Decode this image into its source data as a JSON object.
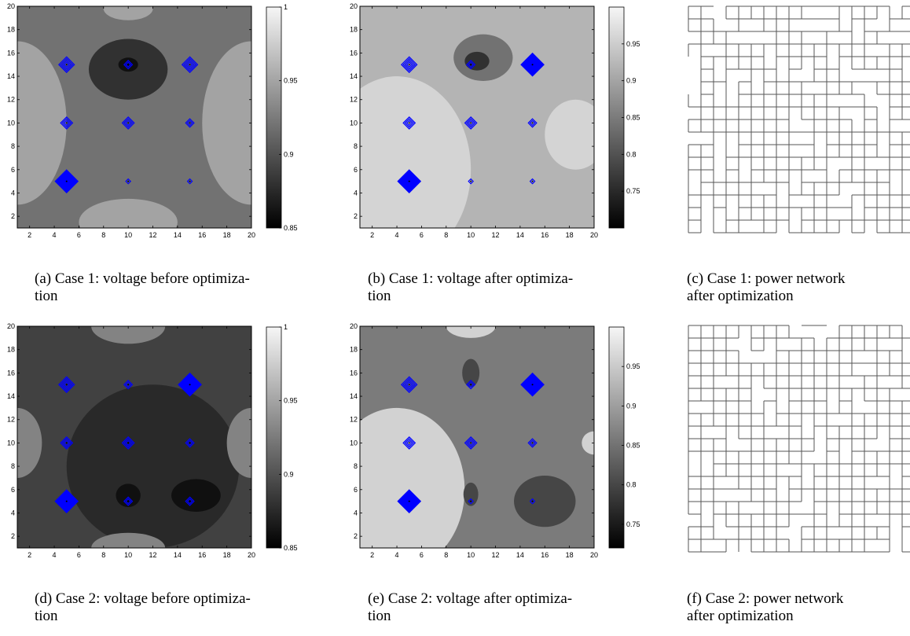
{
  "figure": {
    "panels": [
      {
        "id": "a",
        "caption": {
          "line1": "(a) Case 1: voltage before optimiza-",
          "line2": "tion"
        },
        "chart_data": {
          "type": "heatmap",
          "xlim": [
            1,
            20
          ],
          "ylim": [
            1,
            20
          ],
          "xticks": [
            2,
            4,
            6,
            8,
            10,
            12,
            14,
            16,
            18,
            20
          ],
          "yticks": [
            2,
            4,
            6,
            8,
            10,
            12,
            14,
            16,
            18,
            20
          ],
          "colorbar": {
            "ticks": [
              0.85,
              0.9,
              0.95,
              1
            ],
            "tick_labels": [
              "0.85",
              "0.9",
              "0.95",
              "1"
            ],
            "range": [
              0.85,
              1
            ]
          },
          "background_level": 0.92,
          "regions": [
            {
              "level": 0.88,
              "center": [
                10,
                14.6
              ],
              "radius": [
                3.2,
                2.6
              ]
            },
            {
              "level": 0.86,
              "center": [
                10,
                15.0
              ],
              "radius": [
                0.8,
                0.6
              ]
            },
            {
              "level": 0.95,
              "center": [
                10,
                1.5
              ],
              "radius": [
                4,
                2
              ]
            },
            {
              "level": 0.95,
              "center": [
                10,
                19.8
              ],
              "radius": [
                2,
                1
              ]
            },
            {
              "level": 0.95,
              "center": [
                1,
                10
              ],
              "radius": [
                4,
                7
              ]
            },
            {
              "level": 0.95,
              "center": [
                20,
                10
              ],
              "radius": [
                4,
                7
              ]
            }
          ],
          "markers": [
            {
              "x": 5,
              "y": 15,
              "rings": 4
            },
            {
              "x": 10,
              "y": 15,
              "rings": 2
            },
            {
              "x": 15,
              "y": 15,
              "rings": 4
            },
            {
              "x": 5,
              "y": 10,
              "rings": 3
            },
            {
              "x": 10,
              "y": 10,
              "rings": 3
            },
            {
              "x": 15,
              "y": 10,
              "rings": 2
            },
            {
              "x": 5,
              "y": 5,
              "rings": 6
            },
            {
              "x": 10,
              "y": 5,
              "rings": 1
            },
            {
              "x": 15,
              "y": 5,
              "rings": 1
            }
          ]
        }
      },
      {
        "id": "b",
        "caption": {
          "line1": "(b) Case 1:  voltage after optimiza-",
          "line2": "tion"
        },
        "chart_data": {
          "type": "heatmap",
          "xlim": [
            1,
            20
          ],
          "ylim": [
            1,
            20
          ],
          "xticks": [
            2,
            4,
            6,
            8,
            10,
            12,
            14,
            16,
            18,
            20
          ],
          "yticks": [
            2,
            4,
            6,
            8,
            10,
            12,
            14,
            16,
            18,
            20
          ],
          "colorbar": {
            "ticks": [
              0.75,
              0.8,
              0.85,
              0.9,
              0.95
            ],
            "tick_labels": [
              "0.75",
              "0.8",
              "0.85",
              "0.9",
              "0.95"
            ],
            "range": [
              0.7,
              1
            ]
          },
          "background_level": 0.92,
          "regions": [
            {
              "level": 0.96,
              "center": [
                4,
                6
              ],
              "radius": [
                6,
                8
              ]
            },
            {
              "level": 0.96,
              "center": [
                18.5,
                9
              ],
              "radius": [
                2.5,
                3
              ]
            },
            {
              "level": 0.84,
              "center": [
                11,
                15.6
              ],
              "radius": [
                2.4,
                2
              ]
            },
            {
              "level": 0.76,
              "center": [
                10.5,
                15.3
              ],
              "radius": [
                1,
                0.8
              ]
            }
          ],
          "markers": [
            {
              "x": 5,
              "y": 15,
              "rings": 4
            },
            {
              "x": 10,
              "y": 15,
              "rings": 2
            },
            {
              "x": 15,
              "y": 15,
              "rings": 6
            },
            {
              "x": 5,
              "y": 10,
              "rings": 3
            },
            {
              "x": 10,
              "y": 10,
              "rings": 3
            },
            {
              "x": 15,
              "y": 10,
              "rings": 2
            },
            {
              "x": 5,
              "y": 5,
              "rings": 6
            },
            {
              "x": 10,
              "y": 5,
              "rings": 1
            },
            {
              "x": 15,
              "y": 5,
              "rings": 1
            }
          ]
        }
      },
      {
        "id": "c",
        "caption": {
          "line1": "(c) Case 1: power network",
          "line2": "after optimization"
        },
        "network": true
      },
      {
        "id": "d",
        "caption": {
          "line1": "(d) Case 2: voltage before optimiza-",
          "line2": "tion"
        },
        "chart_data": {
          "type": "heatmap",
          "xlim": [
            1,
            20
          ],
          "ylim": [
            1,
            20
          ],
          "xticks": [
            2,
            4,
            6,
            8,
            10,
            12,
            14,
            16,
            18,
            20
          ],
          "yticks": [
            2,
            4,
            6,
            8,
            10,
            12,
            14,
            16,
            18,
            20
          ],
          "colorbar": {
            "ticks": [
              0.85,
              0.9,
              0.95,
              1
            ],
            "tick_labels": [
              "0.85",
              "0.9",
              "0.95",
              "1"
            ],
            "range": [
              0.85,
              1
            ]
          },
          "background_level": 0.89,
          "regions": [
            {
              "level": 0.875,
              "center": [
                12,
                8
              ],
              "radius": [
                7,
                7
              ]
            },
            {
              "level": 0.86,
              "center": [
                15.5,
                5.5
              ],
              "radius": [
                2,
                1.4
              ]
            },
            {
              "level": 0.86,
              "center": [
                10,
                5.5
              ],
              "radius": [
                1,
                1
              ]
            },
            {
              "level": 0.93,
              "center": [
                10,
                20
              ],
              "radius": [
                3,
                1.5
              ]
            },
            {
              "level": 0.93,
              "center": [
                10,
                1
              ],
              "radius": [
                3,
                1.3
              ]
            },
            {
              "level": 0.93,
              "center": [
                1,
                10
              ],
              "radius": [
                2,
                3
              ]
            },
            {
              "level": 0.93,
              "center": [
                20,
                10
              ],
              "radius": [
                2,
                3
              ]
            }
          ],
          "markers": [
            {
              "x": 5,
              "y": 15,
              "rings": 4
            },
            {
              "x": 10,
              "y": 15,
              "rings": 2
            },
            {
              "x": 15,
              "y": 15,
              "rings": 6
            },
            {
              "x": 5,
              "y": 10,
              "rings": 3
            },
            {
              "x": 10,
              "y": 10,
              "rings": 3
            },
            {
              "x": 15,
              "y": 10,
              "rings": 2
            },
            {
              "x": 5,
              "y": 5,
              "rings": 6
            },
            {
              "x": 10,
              "y": 5,
              "rings": 2
            },
            {
              "x": 15,
              "y": 5,
              "rings": 2
            }
          ]
        }
      },
      {
        "id": "e",
        "caption": {
          "line1": "(e) Case 2:  voltage after optimiza-",
          "line2": "tion"
        },
        "chart_data": {
          "type": "heatmap",
          "xlim": [
            1,
            20
          ],
          "ylim": [
            1,
            20
          ],
          "xticks": [
            2,
            4,
            6,
            8,
            10,
            12,
            14,
            16,
            18,
            20
          ],
          "yticks": [
            2,
            4,
            6,
            8,
            10,
            12,
            14,
            16,
            18,
            20
          ],
          "colorbar": {
            "ticks": [
              0.75,
              0.8,
              0.85,
              0.9,
              0.95
            ],
            "tick_labels": [
              "0.75",
              "0.8",
              "0.85",
              "0.9",
              "0.95"
            ],
            "range": [
              0.72,
              1
            ]
          },
          "background_level": 0.86,
          "regions": [
            {
              "level": 0.96,
              "center": [
                4,
                6
              ],
              "radius": [
                5.5,
                7
              ]
            },
            {
              "level": 0.96,
              "center": [
                10,
                20
              ],
              "radius": [
                2,
                1
              ]
            },
            {
              "level": 0.96,
              "center": [
                20,
                10
              ],
              "radius": [
                1,
                1
              ]
            },
            {
              "level": 0.8,
              "center": [
                16,
                5
              ],
              "radius": [
                2.5,
                2.2
              ]
            },
            {
              "level": 0.8,
              "center": [
                10,
                16
              ],
              "radius": [
                0.7,
                1.2
              ]
            },
            {
              "level": 0.8,
              "center": [
                10,
                5.6
              ],
              "radius": [
                0.6,
                1
              ]
            }
          ],
          "markers": [
            {
              "x": 5,
              "y": 15,
              "rings": 4
            },
            {
              "x": 10,
              "y": 15,
              "rings": 2
            },
            {
              "x": 15,
              "y": 15,
              "rings": 6
            },
            {
              "x": 5,
              "y": 10,
              "rings": 3
            },
            {
              "x": 10,
              "y": 10,
              "rings": 3
            },
            {
              "x": 15,
              "y": 10,
              "rings": 2
            },
            {
              "x": 5,
              "y": 5,
              "rings": 6
            },
            {
              "x": 10,
              "y": 5,
              "rings": 1
            },
            {
              "x": 15,
              "y": 5,
              "rings": 1
            }
          ]
        }
      },
      {
        "id": "f",
        "caption": {
          "line1": "(f) Case 2: power network",
          "line2": "after optimization"
        },
        "network": true
      }
    ]
  }
}
